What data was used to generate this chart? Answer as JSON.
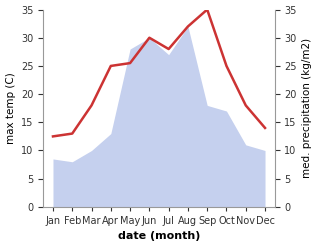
{
  "months": [
    "Jan",
    "Feb",
    "Mar",
    "Apr",
    "May",
    "Jun",
    "Jul",
    "Aug",
    "Sep",
    "Oct",
    "Nov",
    "Dec"
  ],
  "temperature": [
    12.5,
    13.0,
    18.0,
    25.0,
    25.5,
    30.0,
    28.0,
    32.0,
    35.0,
    25.0,
    18.0,
    14.0
  ],
  "precipitation": [
    8.5,
    8.0,
    10.0,
    13.0,
    28.0,
    30.0,
    27.0,
    32.0,
    18.0,
    17.0,
    11.0,
    10.0
  ],
  "temp_color": "#cc3333",
  "precip_color": "#c5d0ee",
  "background_color": "#ffffff",
  "ylabel_left": "max temp (C)",
  "ylabel_right": "med. precipitation (kg/m2)",
  "xlabel": "date (month)",
  "ylim": [
    0,
    35
  ],
  "yticks": [
    0,
    5,
    10,
    15,
    20,
    25,
    30,
    35
  ],
  "label_fontsize": 7.5,
  "tick_fontsize": 7,
  "xlabel_fontsize": 8,
  "xlabel_fontweight": "bold",
  "temp_linewidth": 1.8
}
